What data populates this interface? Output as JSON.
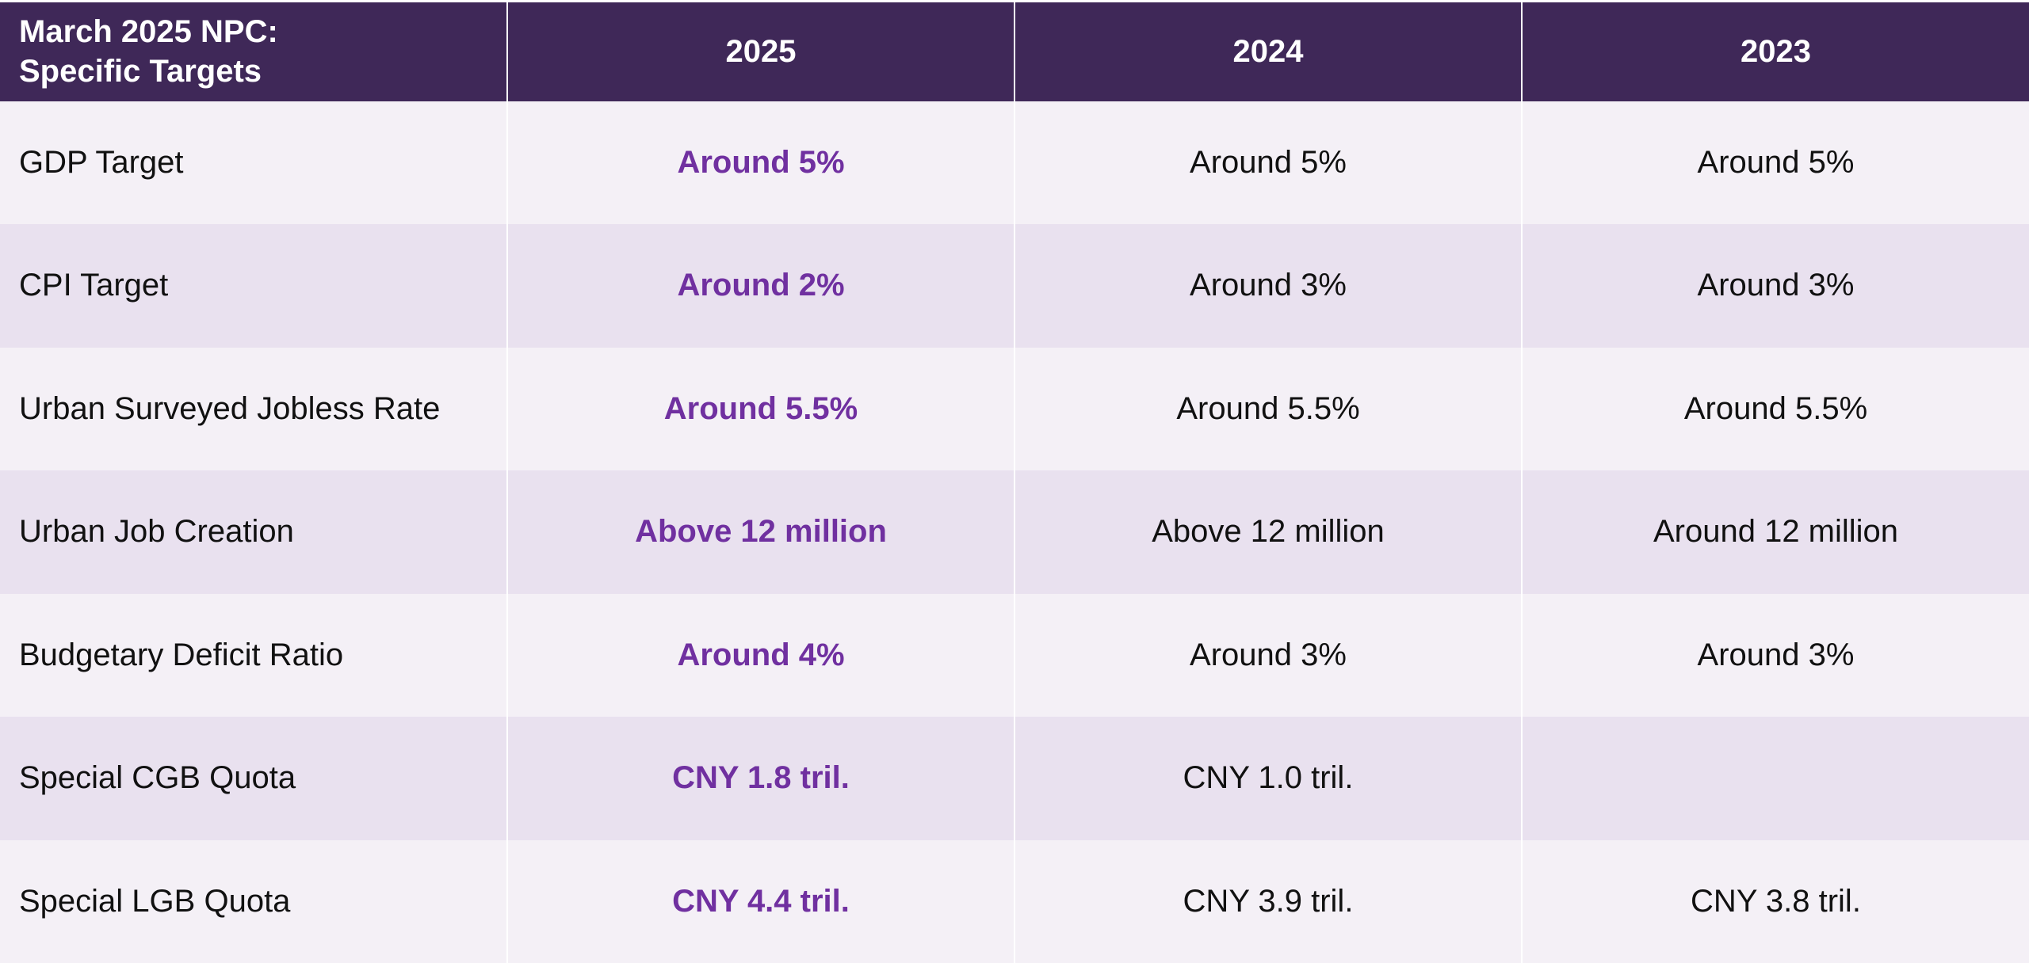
{
  "table": {
    "header": {
      "title": "March 2025 NPC: Specific Targets",
      "title_line1": "March 2025 NPC:",
      "title_line2": "Specific Targets",
      "years": [
        "2025",
        "2024",
        "2023"
      ]
    },
    "rows": [
      {
        "label": "GDP Target",
        "y2025": "Around 5%",
        "y2024": "Around 5%",
        "y2023": "Around 5%"
      },
      {
        "label": "CPI Target",
        "y2025": "Around 2%",
        "y2024": "Around 3%",
        "y2023": "Around 3%"
      },
      {
        "label": "Urban Surveyed Jobless Rate",
        "y2025": "Around 5.5%",
        "y2024": "Around 5.5%",
        "y2023": "Around 5.5%"
      },
      {
        "label": "Urban Job Creation",
        "y2025": "Above 12 million",
        "y2024": "Above 12 million",
        "y2023": "Around 12 million"
      },
      {
        "label": "Budgetary Deficit Ratio",
        "y2025": "Around 4%",
        "y2024": "Around 3%",
        "y2023": "Around 3%"
      },
      {
        "label": "Special CGB Quota",
        "y2025": "CNY 1.8 tril.",
        "y2024": "CNY 1.0 tril.",
        "y2023": ""
      },
      {
        "label": "Special LGB Quota",
        "y2025": "CNY 4.4 tril.",
        "y2024": "CNY 3.9 tril.",
        "y2023": "CNY 3.8 tril."
      }
    ]
  },
  "colors": {
    "header_bg": "#3f2858",
    "highlight_text": "#7030a0",
    "row_odd": "#f4f0f6",
    "row_even": "#e9e1ef"
  }
}
